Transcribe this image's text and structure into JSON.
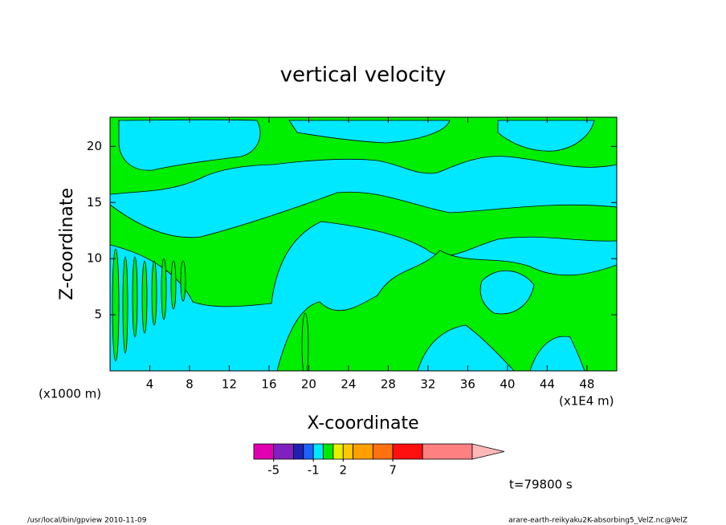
{
  "chart_data": {
    "type": "contour",
    "title": "vertical velocity",
    "x_label": "X-coordinate",
    "y_label": "Z-coordinate",
    "x_unit": "(x1E4 m)",
    "y_unit": "(x1000 m)",
    "xlim": [
      0,
      51
    ],
    "xticks": [
      4,
      8,
      12,
      16,
      20,
      24,
      28,
      32,
      36,
      40,
      44,
      48
    ],
    "ylim": [
      0,
      22.6
    ],
    "yticks": [
      5,
      10,
      15,
      20
    ],
    "colorbar": {
      "levels": [
        -7,
        -5,
        -3,
        -2,
        -1,
        0,
        1,
        2,
        3,
        5,
        7,
        10,
        15
      ],
      "colors": [
        "#e000b0",
        "#8020c0",
        "#2020b0",
        "#2060ff",
        "#00e8ff",
        "#00e800",
        "#e8f000",
        "#ffc800",
        "#ffa000",
        "#ff7010",
        "#ff1010",
        "#ff8080"
      ],
      "extend_color": "#ffb8b8",
      "ticks": [
        -5,
        -1,
        2,
        7
      ]
    },
    "annotation": "t=79800 s",
    "footer_left": "/usr/local/bin/gpview  2010-11-09",
    "footer_right": "arare-earth-reikyaku2K-absorbing5_VelZ.nc@VelZ"
  }
}
